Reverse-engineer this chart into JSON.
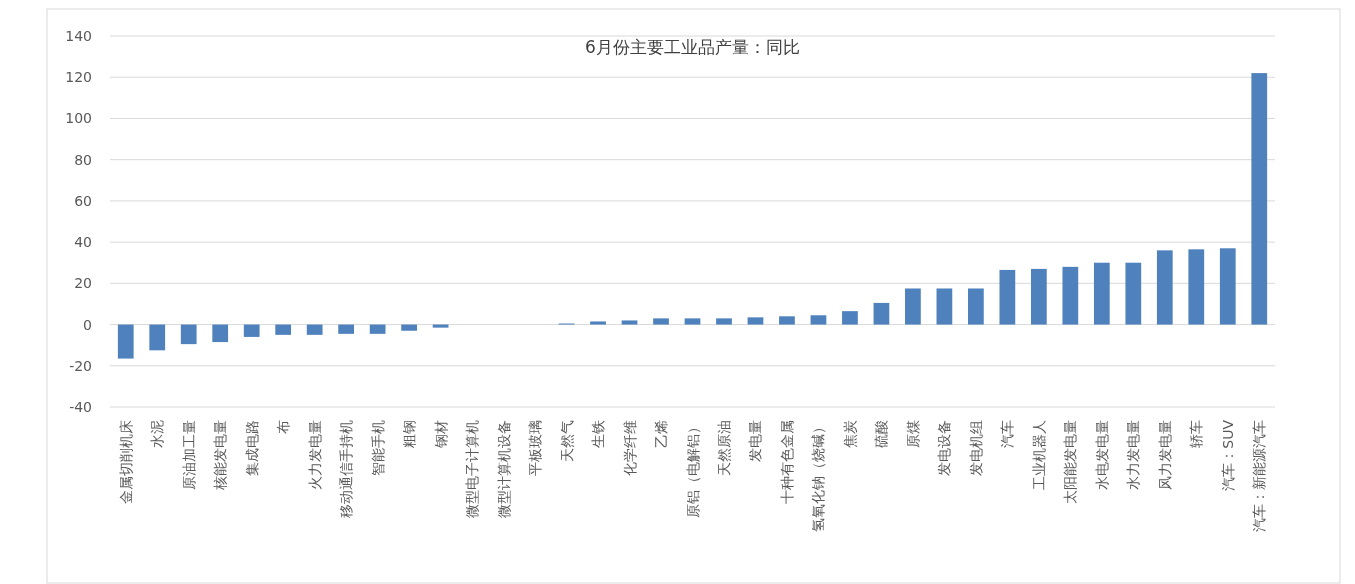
{
  "chart_data": {
    "type": "bar",
    "title": "6月份主要工业品产量：同比",
    "categories": [
      "金属切削机床",
      "水泥",
      "原油加工量",
      "核能发电量",
      "集成电路",
      "布",
      "火力发电量",
      "移动通信手持机",
      "智能手机",
      "粗钢",
      "钢材",
      "微型电子计算机",
      "微型计算机设备",
      "平板玻璃",
      "天然气",
      "生铁",
      "化学纤维",
      "乙烯",
      "原铝（电解铝）",
      "天然原油",
      "发电量",
      "十种有色金属",
      "氢氧化钠（烧碱）",
      "焦炭",
      "硫酸",
      "原煤",
      "发电设备",
      "发电机组",
      "汽车",
      "工业机器人",
      "太阳能发电量",
      "水电发电量",
      "水力发电量",
      "风力发电量",
      "轿车",
      "汽车：SUV",
      "汽车：新能源汽车"
    ],
    "values": [
      -16.5,
      -12.5,
      -9.5,
      -8.5,
      -6,
      -5,
      -5,
      -4.5,
      -4.5,
      -3,
      -1.5,
      0,
      0,
      0,
      0.5,
      1.5,
      2,
      3,
      3,
      3,
      3.5,
      4,
      4.5,
      6.5,
      10.5,
      17.5,
      17.5,
      17.5,
      26.5,
      27,
      28,
      30,
      30,
      36,
      36.5,
      37,
      122
    ],
    "color": "#4f81bd",
    "ylim": [
      -40,
      140
    ],
    "yticks": [
      -40,
      -20,
      0,
      20,
      40,
      60,
      80,
      100,
      120,
      140
    ],
    "grid": "y"
  }
}
